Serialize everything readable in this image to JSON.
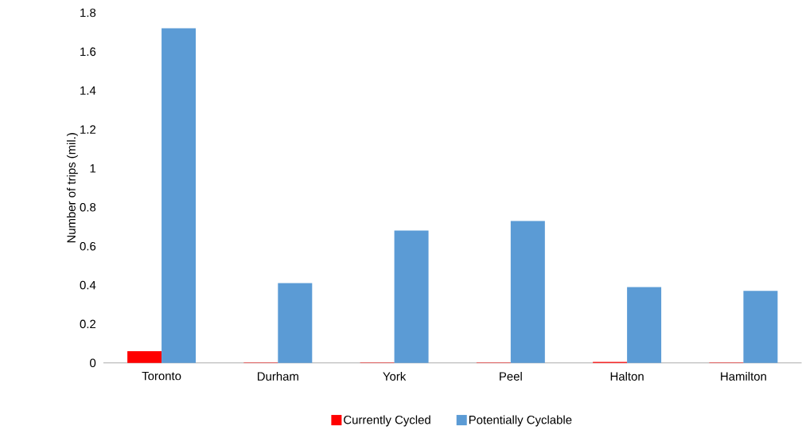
{
  "chart_data": {
    "type": "bar",
    "ylabel": "Number of trips (mil.)",
    "categories": [
      "Toronto",
      "Durham",
      "York",
      "Peel",
      "Halton",
      "Hamilton"
    ],
    "series": [
      {
        "name": "Currently Cycled",
        "color": "#ff0000",
        "values": [
          0.06,
          0.002,
          0.002,
          0.002,
          0.005,
          0.002
        ]
      },
      {
        "name": "Potentially Cyclable",
        "color": "#5b9bd5",
        "values": [
          1.72,
          0.41,
          0.68,
          0.73,
          0.39,
          0.37
        ]
      }
    ],
    "ylim": [
      0,
      1.8
    ],
    "yticks": [
      0,
      0.2,
      0.4,
      0.6,
      0.8,
      1,
      1.2,
      1.4,
      1.6,
      1.8
    ],
    "grid": false,
    "legend": "bottom"
  }
}
